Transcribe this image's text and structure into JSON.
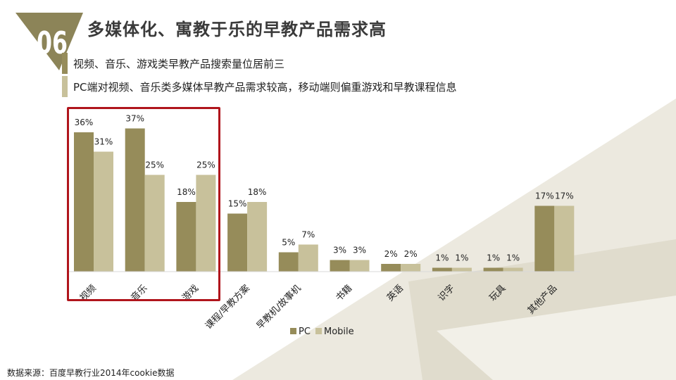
{
  "header": {
    "number": "06",
    "title": "多媒体化、寓教于乐的早教产品需求高"
  },
  "bullets": [
    {
      "text": "视频、音乐、游戏类早教产品搜索量位居前三"
    },
    {
      "text": "PC端对视频、音乐类多媒体早教产品需求较高，移动端则偏重游戏和早教课程信息"
    }
  ],
  "colors": {
    "pc": "#968c5a",
    "mobile": "#c8c19b",
    "highlight": "#b0151c",
    "badge": "#8c8458",
    "bg_shape": "#ece9df"
  },
  "chart_data": {
    "type": "bar",
    "categories": [
      "视频",
      "音乐",
      "游戏",
      "课程/早教方案",
      "早教机/故事机",
      "书籍",
      "英语",
      "识字",
      "玩具",
      "其他产品"
    ],
    "series": [
      {
        "name": "PC",
        "values": [
          36,
          37,
          18,
          15,
          5,
          3,
          2,
          1,
          1,
          17
        ]
      },
      {
        "name": "Mobile",
        "values": [
          31,
          25,
          25,
          18,
          7,
          3,
          2,
          1,
          1,
          17
        ]
      }
    ],
    "value_suffix": "%",
    "ylim": [
      0,
      40
    ],
    "grid": false,
    "legend_position": "bottom-center",
    "highlighted_categories": [
      "视频",
      "音乐",
      "游戏"
    ]
  },
  "footer": {
    "source": "数据来源：百度早教行业2014年cookie数据"
  }
}
